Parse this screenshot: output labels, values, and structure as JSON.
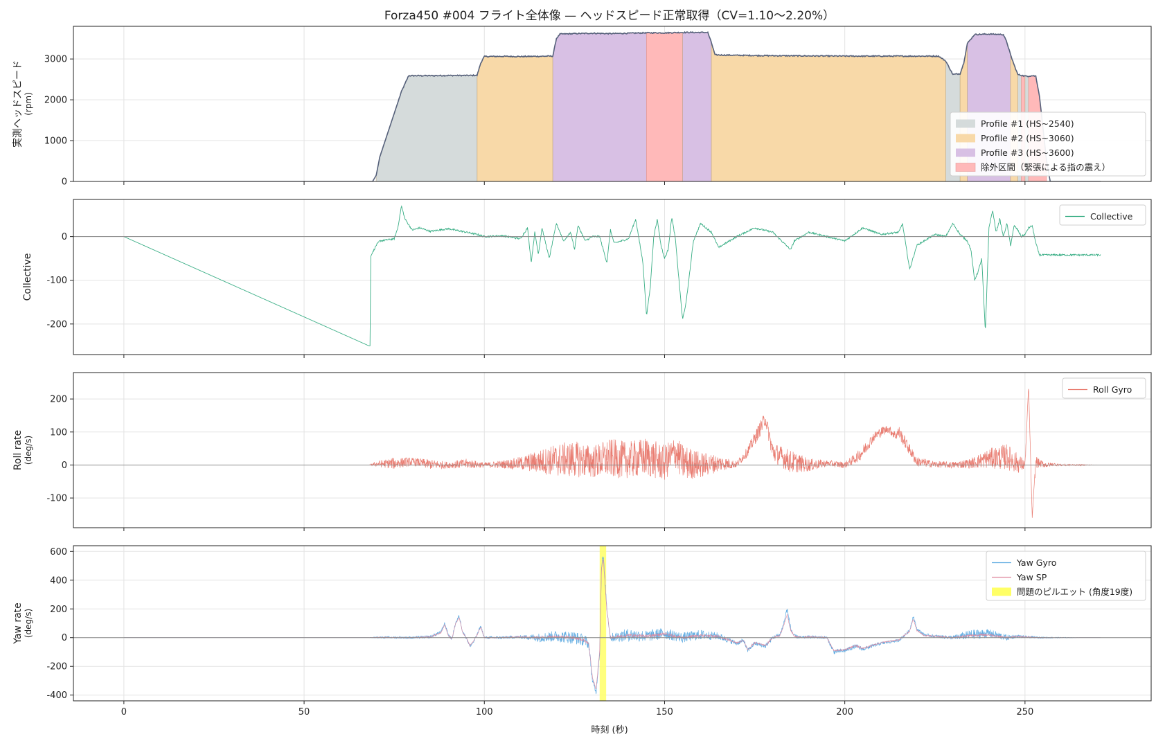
{
  "title": "Forza450 #004 フライト全体像 — ヘッドスピード正常取得（CV=1.10〜2.20%）",
  "xlabel": "時刻 (秒)",
  "colors": {
    "headspeed_line": "#55607a",
    "profile1": "#d5dbdb",
    "profile2": "#f8d9a8",
    "profile3": "#d8c0e4",
    "excluded": "#ffb9b9",
    "collective": "#2eaa7e",
    "roll": "#e8766a",
    "yaw_gyro": "#5aa9e0",
    "yaw_sp": "#e08aa0",
    "highlight": "#ffff66"
  },
  "chart_data": [
    {
      "type": "area",
      "ylabel": "実測ヘッドスピード\n(rpm)",
      "xlim": [
        -14,
        285
      ],
      "ylim": [
        0,
        3800
      ],
      "yticks": [
        0,
        1000,
        2000,
        3000
      ],
      "xticks": [
        0,
        50,
        100,
        150,
        200,
        250
      ],
      "legend_position": "lower-right",
      "headspeed": {
        "x": [
          0,
          69,
          70,
          71,
          74,
          77,
          79,
          85,
          90,
          95,
          98,
          99,
          100,
          105,
          110,
          119,
          120,
          121,
          125,
          130,
          135,
          140,
          145,
          150,
          155,
          160,
          162,
          163,
          164,
          170,
          180,
          190,
          200,
          210,
          220,
          226,
          228,
          230,
          232,
          233,
          234,
          236,
          240,
          244,
          245,
          246,
          247,
          248,
          249,
          250,
          251,
          252,
          253,
          254,
          255,
          256,
          257,
          258,
          260,
          265,
          271
        ],
        "y": [
          0,
          0,
          150,
          600,
          1400,
          2200,
          2590,
          2590,
          2595,
          2595,
          2600,
          2900,
          3060,
          3065,
          3060,
          3070,
          3500,
          3610,
          3620,
          3630,
          3620,
          3630,
          3640,
          3640,
          3650,
          3650,
          3650,
          3400,
          3100,
          3090,
          3080,
          3075,
          3070,
          3070,
          3070,
          3070,
          2950,
          2620,
          2640,
          2900,
          3380,
          3600,
          3610,
          3600,
          3400,
          3100,
          2850,
          2620,
          2600,
          2580,
          2580,
          2590,
          2580,
          2100,
          1300,
          500,
          0,
          0,
          0,
          0,
          0
        ]
      },
      "spans": [
        {
          "kind": "profile1",
          "start": 70,
          "end": 98
        },
        {
          "kind": "profile2",
          "start": 98,
          "end": 119
        },
        {
          "kind": "profile3",
          "start": 119,
          "end": 145
        },
        {
          "kind": "excluded",
          "start": 145,
          "end": 155
        },
        {
          "kind": "profile3",
          "start": 155,
          "end": 163
        },
        {
          "kind": "profile2",
          "start": 163,
          "end": 228
        },
        {
          "kind": "profile1",
          "start": 228,
          "end": 232
        },
        {
          "kind": "profile2",
          "start": 232,
          "end": 234
        },
        {
          "kind": "profile3",
          "start": 234,
          "end": 246
        },
        {
          "kind": "profile2",
          "start": 246,
          "end": 248
        },
        {
          "kind": "profile1",
          "start": 248,
          "end": 249
        },
        {
          "kind": "excluded",
          "start": 249,
          "end": 250
        },
        {
          "kind": "profile1",
          "start": 250,
          "end": 251
        },
        {
          "kind": "excluded",
          "start": 251,
          "end": 256
        }
      ],
      "legend": [
        {
          "kind": "profile1",
          "label": "Profile #1 (HS~2540)"
        },
        {
          "kind": "profile2",
          "label": "Profile #2 (HS~3060)"
        },
        {
          "kind": "profile3",
          "label": "Profile #3 (HS~3600)"
        },
        {
          "kind": "excluded",
          "label": "除外区間（緊張による指の震え）"
        }
      ]
    },
    {
      "type": "line",
      "ylabel": "Collective",
      "xlim": [
        -14,
        285
      ],
      "ylim": [
        -270,
        85
      ],
      "yticks": [
        -200,
        -100,
        0
      ],
      "xticks": [
        0,
        50,
        100,
        150,
        200,
        250
      ],
      "legend_position": "upper-right",
      "series": [
        {
          "name": "Collective",
          "color_key": "collective",
          "x": [
            0,
            68,
            68.3,
            68.5,
            70,
            71,
            75,
            76,
            77,
            78,
            80,
            82,
            85,
            90,
            95,
            98,
            100,
            105,
            110,
            112,
            113,
            114,
            115,
            116,
            118,
            120,
            122,
            124,
            125,
            126,
            128,
            130,
            132,
            134,
            135,
            136,
            140,
            142,
            143,
            144,
            145,
            146,
            147,
            148,
            149,
            150,
            151,
            152,
            153,
            154,
            155,
            156,
            158,
            160,
            163,
            165,
            170,
            175,
            180,
            185,
            186,
            188,
            190,
            195,
            200,
            205,
            210,
            215,
            216,
            218,
            220,
            225,
            228,
            230,
            232,
            234,
            235,
            236,
            237,
            238,
            239,
            240,
            241,
            242,
            243,
            244,
            245,
            246,
            247,
            248,
            249,
            250,
            251,
            252,
            253,
            254,
            255,
            256,
            258,
            260,
            265,
            271
          ],
          "y": [
            0,
            -250,
            -250,
            -45,
            -20,
            -10,
            -5,
            20,
            70,
            40,
            15,
            20,
            12,
            18,
            10,
            5,
            0,
            2,
            -5,
            20,
            -60,
            10,
            -40,
            20,
            -50,
            30,
            -10,
            10,
            -30,
            25,
            -10,
            0,
            0,
            -60,
            15,
            -15,
            -5,
            40,
            -10,
            -60,
            -180,
            -120,
            0,
            40,
            -20,
            -50,
            -30,
            45,
            -5,
            -100,
            -190,
            -150,
            -10,
            30,
            10,
            -25,
            0,
            20,
            10,
            -30,
            -10,
            0,
            10,
            0,
            -10,
            20,
            5,
            10,
            30,
            -75,
            -20,
            5,
            0,
            30,
            5,
            -10,
            -30,
            -100,
            -80,
            -50,
            -220,
            20,
            60,
            10,
            40,
            0,
            30,
            -20,
            25,
            15,
            0,
            5,
            20,
            25,
            -15,
            -42,
            -42,
            -42,
            -42,
            -42,
            -42,
            -42
          ]
        }
      ]
    },
    {
      "type": "line",
      "ylabel": "Roll rate\n(deg/s)",
      "xlim": [
        -14,
        285
      ],
      "ylim": [
        -190,
        280
      ],
      "yticks": [
        -100,
        0,
        100,
        200
      ],
      "xticks": [
        0,
        50,
        100,
        150,
        200,
        250
      ],
      "legend_position": "upper-right",
      "series": [
        {
          "name": "Roll Gyro",
          "color_key": "roll",
          "x": [
            68,
            70,
            75,
            80,
            85,
            90,
            95,
            100,
            105,
            110,
            115,
            120,
            125,
            130,
            135,
            140,
            145,
            150,
            153,
            155,
            160,
            165,
            170,
            173,
            175,
            177,
            178,
            180,
            185,
            190,
            195,
            200,
            203,
            205,
            208,
            210,
            212,
            214,
            215,
            220,
            225,
            230,
            235,
            240,
            245,
            248,
            250,
            251,
            252,
            253,
            254,
            256,
            258,
            260,
            265,
            271
          ],
          "y": [
            0,
            3,
            5,
            10,
            2,
            0,
            4,
            0,
            2,
            5,
            10,
            15,
            18,
            10,
            20,
            15,
            25,
            5,
            40,
            8,
            0,
            5,
            2,
            40,
            80,
            120,
            140,
            40,
            10,
            0,
            5,
            0,
            20,
            40,
            85,
            100,
            110,
            90,
            100,
            10,
            2,
            0,
            5,
            20,
            25,
            5,
            0,
            240,
            -160,
            10,
            5,
            0,
            2,
            0,
            0,
            0
          ],
          "noise": [
            0,
            8,
            18,
            12,
            15,
            10,
            15,
            8,
            12,
            20,
            35,
            50,
            55,
            50,
            60,
            55,
            60,
            55,
            50,
            55,
            40,
            25,
            10,
            15,
            20,
            25,
            20,
            30,
            35,
            20,
            10,
            10,
            15,
            20,
            15,
            15,
            12,
            15,
            20,
            15,
            10,
            10,
            15,
            30,
            40,
            30,
            15,
            0,
            0,
            20,
            12,
            8,
            5,
            3,
            2,
            0
          ]
        }
      ]
    },
    {
      "type": "line",
      "ylabel": "Yaw rate\n(deg/s)",
      "xlim": [
        -14,
        285
      ],
      "ylim": [
        -440,
        640
      ],
      "yticks": [
        -400,
        -200,
        0,
        200,
        400,
        600
      ],
      "xticks": [
        0,
        50,
        100,
        150,
        200,
        250
      ],
      "legend_position": "upper-right",
      "highlight_span": {
        "start": 132,
        "end": 133.8,
        "label": "問題のピルエット (角度19度)"
      },
      "series": [
        {
          "name": "Yaw Gyro",
          "color_key": "yaw_gyro",
          "x": [
            0,
            68,
            70,
            80,
            85,
            88,
            89,
            90,
            91,
            92,
            93,
            94,
            95,
            96,
            97,
            98,
            99,
            100,
            105,
            110,
            115,
            120,
            125,
            128,
            129,
            130,
            131,
            132,
            132.5,
            133,
            134,
            135,
            140,
            145,
            150,
            155,
            160,
            165,
            170,
            172,
            173,
            175,
            178,
            180,
            182,
            183,
            184,
            185,
            186,
            188,
            190,
            195,
            197,
            200,
            203,
            205,
            210,
            215,
            218,
            219,
            220,
            222,
            225,
            230,
            235,
            240,
            245,
            248,
            250,
            255,
            260,
            265,
            271
          ],
          "y": [
            0,
            0,
            2,
            0,
            5,
            40,
            100,
            20,
            -10,
            100,
            150,
            40,
            0,
            -60,
            -30,
            20,
            80,
            0,
            0,
            5,
            0,
            10,
            0,
            -20,
            -50,
            -300,
            -380,
            -100,
            500,
            570,
            200,
            0,
            20,
            10,
            30,
            0,
            20,
            10,
            -40,
            -20,
            -90,
            -40,
            -60,
            0,
            20,
            90,
            200,
            60,
            10,
            0,
            5,
            0,
            -100,
            -90,
            -60,
            -80,
            -40,
            -20,
            50,
            150,
            60,
            20,
            10,
            0,
            20,
            30,
            0,
            10,
            5,
            0,
            0,
            0,
            0
          ],
          "noise": [
            0,
            0,
            5,
            8,
            10,
            10,
            10,
            10,
            10,
            10,
            10,
            10,
            10,
            10,
            10,
            10,
            10,
            8,
            10,
            10,
            30,
            40,
            45,
            40,
            30,
            20,
            20,
            20,
            20,
            20,
            20,
            30,
            45,
            40,
            40,
            35,
            35,
            25,
            15,
            15,
            15,
            15,
            15,
            15,
            15,
            15,
            20,
            20,
            15,
            10,
            10,
            10,
            15,
            15,
            15,
            15,
            10,
            10,
            10,
            10,
            10,
            10,
            10,
            15,
            35,
            30,
            20,
            10,
            8,
            5,
            3,
            0,
            0
          ]
        },
        {
          "name": "Yaw SP",
          "color_key": "yaw_sp",
          "x": [
            0,
            68,
            70,
            80,
            85,
            88,
            89,
            90,
            91,
            92,
            93,
            94,
            95,
            96,
            97,
            98,
            99,
            100,
            105,
            110,
            115,
            120,
            125,
            128,
            129,
            130,
            131,
            132,
            132.5,
            133,
            134,
            135,
            140,
            145,
            150,
            155,
            160,
            165,
            170,
            172,
            173,
            175,
            178,
            180,
            182,
            183,
            184,
            185,
            186,
            188,
            190,
            195,
            197,
            200,
            203,
            205,
            210,
            215,
            218,
            219,
            220,
            222,
            225,
            230,
            235,
            240,
            245,
            248,
            250,
            255,
            260,
            265,
            271
          ],
          "y": [
            0,
            0,
            2,
            0,
            5,
            35,
            90,
            15,
            -10,
            95,
            140,
            35,
            0,
            -55,
            -25,
            20,
            75,
            0,
            0,
            5,
            0,
            8,
            0,
            -20,
            -45,
            -280,
            -360,
            -90,
            480,
            550,
            190,
            0,
            15,
            10,
            25,
            0,
            15,
            8,
            -35,
            -20,
            -85,
            -35,
            -55,
            0,
            15,
            80,
            160,
            50,
            10,
            0,
            5,
            0,
            -90,
            -85,
            -55,
            -75,
            -35,
            -15,
            45,
            130,
            50,
            15,
            10,
            0,
            15,
            20,
            0,
            8,
            5,
            0,
            0,
            0,
            0
          ],
          "noise": [
            0,
            0,
            2,
            3,
            4,
            4,
            4,
            4,
            4,
            4,
            4,
            4,
            4,
            4,
            4,
            4,
            4,
            3,
            4,
            4,
            8,
            10,
            12,
            10,
            8,
            6,
            6,
            6,
            6,
            6,
            6,
            8,
            12,
            10,
            10,
            10,
            10,
            8,
            5,
            5,
            5,
            5,
            5,
            5,
            5,
            5,
            6,
            6,
            5,
            4,
            4,
            4,
            5,
            5,
            5,
            5,
            4,
            4,
            4,
            4,
            4,
            4,
            4,
            5,
            8,
            8,
            6,
            4,
            3,
            2,
            1,
            0,
            0
          ]
        }
      ]
    }
  ]
}
